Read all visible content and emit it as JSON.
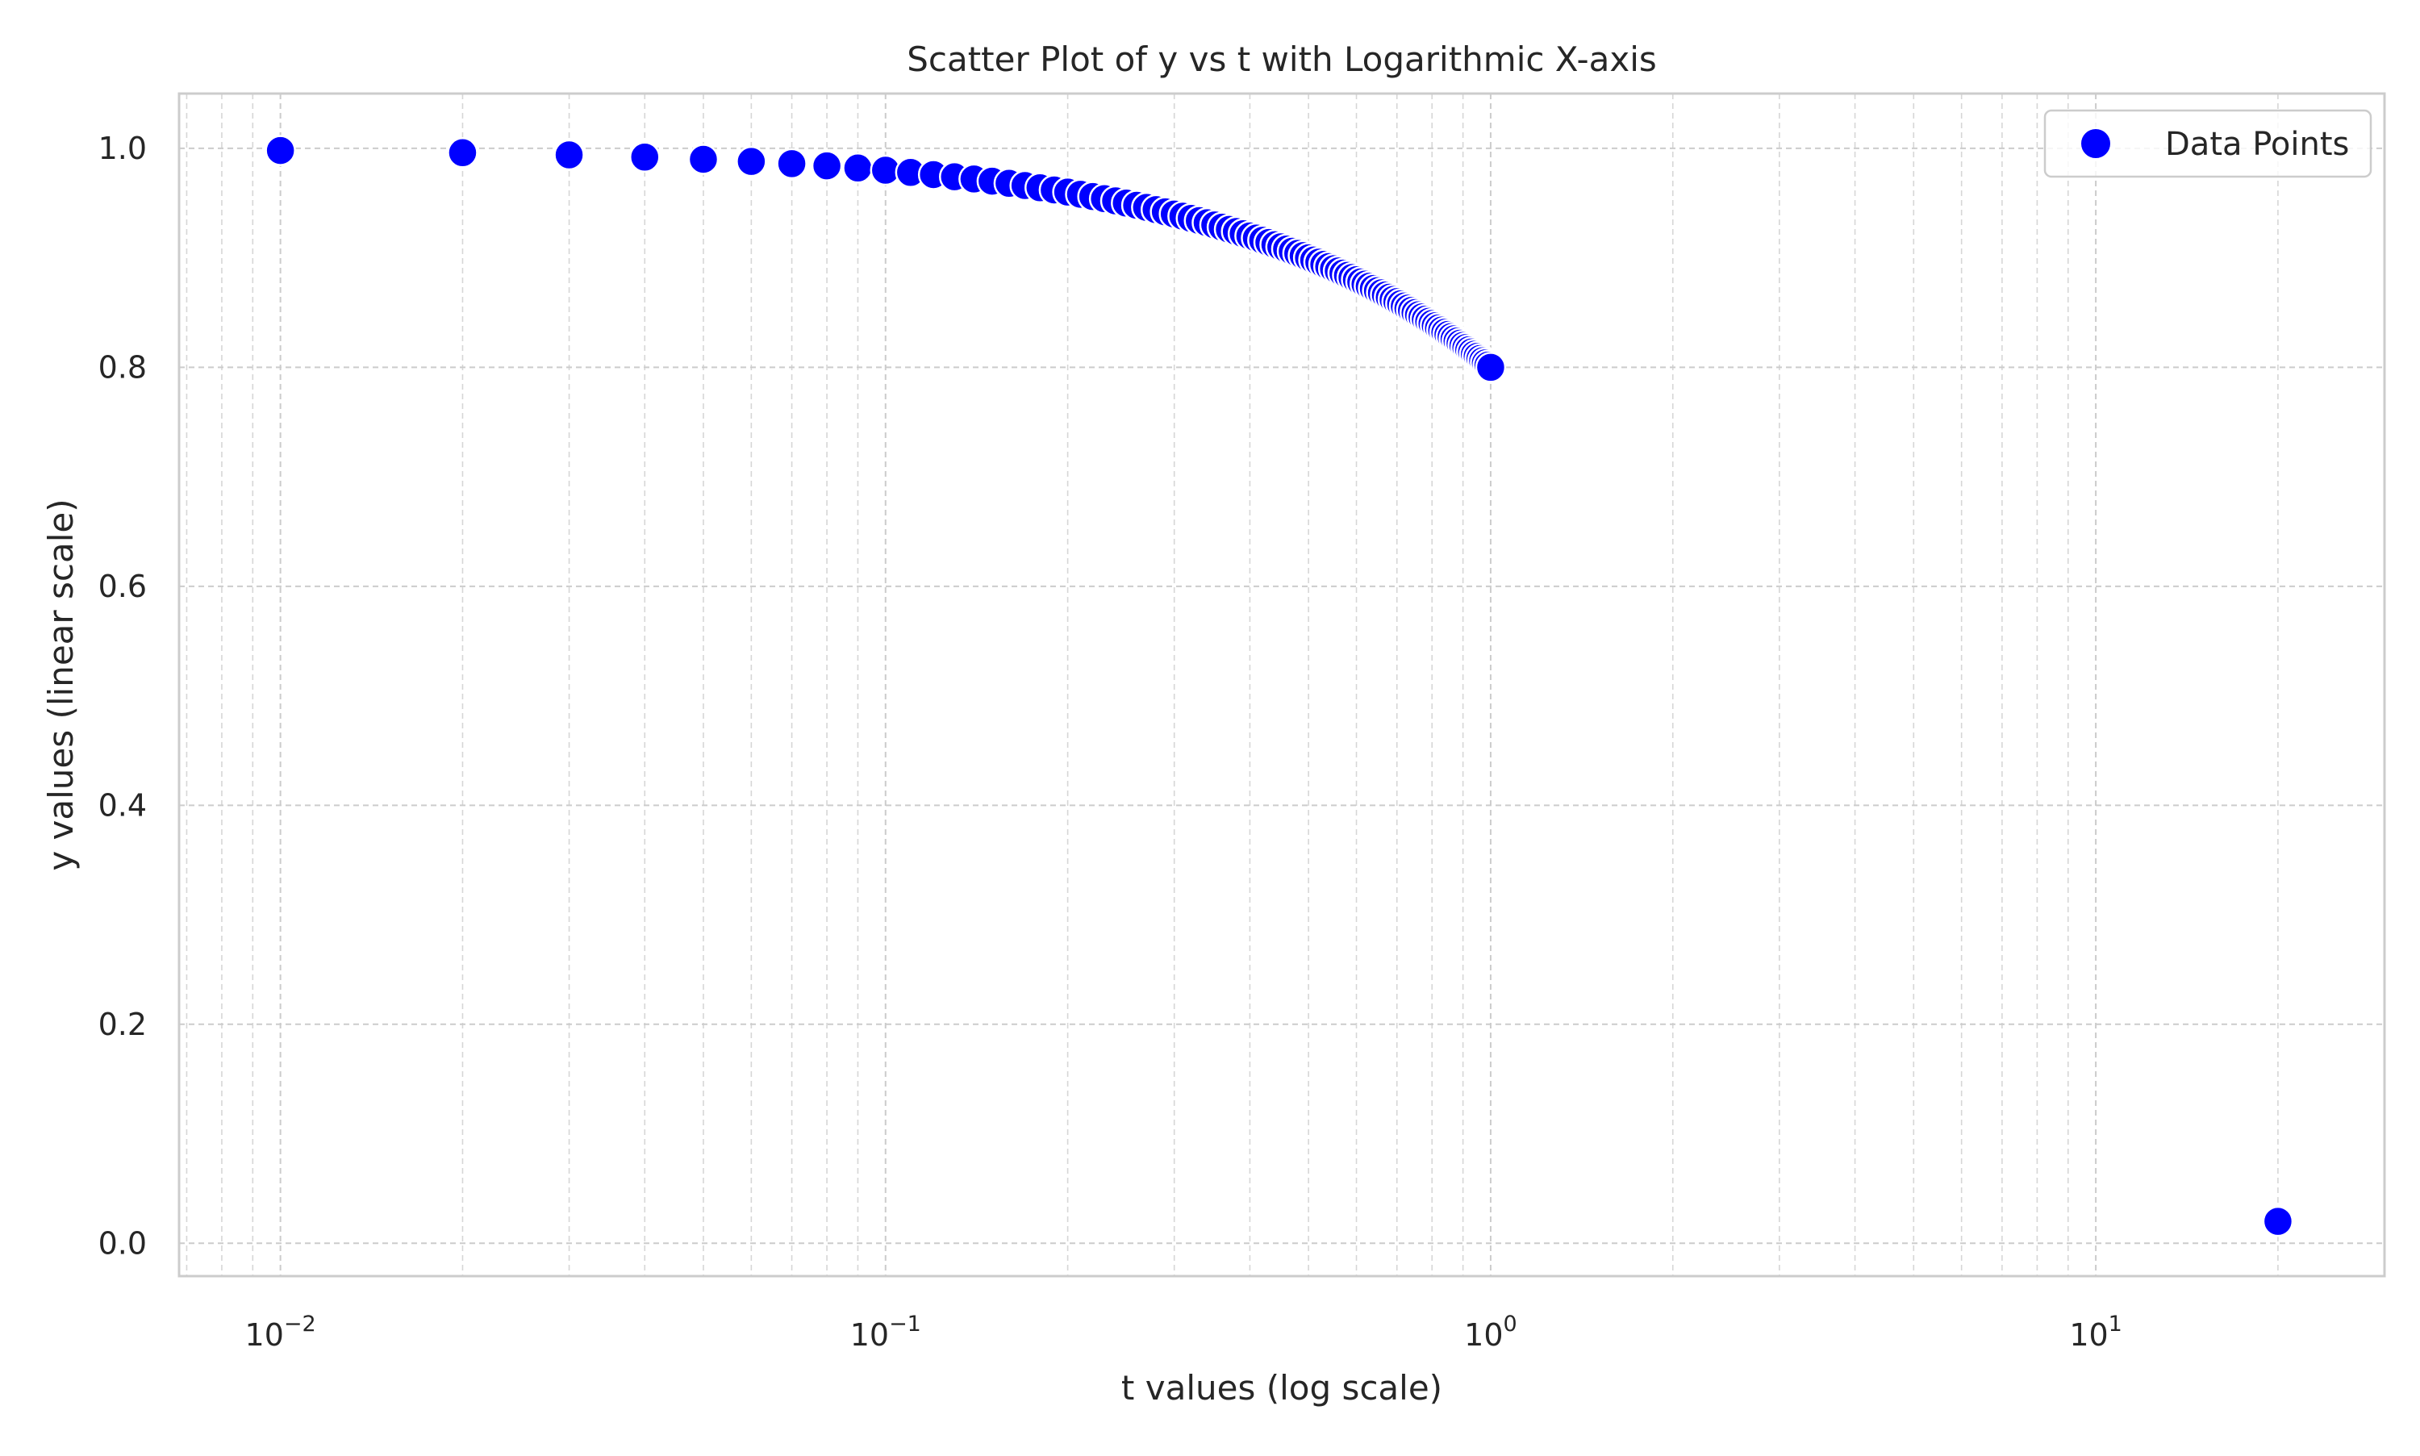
{
  "chart_data": {
    "type": "scatter",
    "title": "Scatter Plot of y vs t with Logarithmic X-axis",
    "xlabel": "t values (log scale)",
    "ylabel": "y values (linear scale)",
    "xscale": "log",
    "xlim": [
      0.0068,
      30
    ],
    "ylim": [
      -0.03,
      1.05
    ],
    "x_ticks": [
      {
        "base": "10",
        "exp": "−2",
        "value": 0.01
      },
      {
        "base": "10",
        "exp": "−1",
        "value": 0.1
      },
      {
        "base": "10",
        "exp": "0",
        "value": 1
      },
      {
        "base": "10",
        "exp": "1",
        "value": 10
      }
    ],
    "y_ticks": [
      {
        "label": "0.0",
        "value": 0.0
      },
      {
        "label": "0.2",
        "value": 0.2
      },
      {
        "label": "0.4",
        "value": 0.4
      },
      {
        "label": "0.6",
        "value": 0.6
      },
      {
        "label": "0.8",
        "value": 0.8
      },
      {
        "label": "1.0",
        "value": 1.0
      }
    ],
    "grid": true,
    "legend": {
      "position": "top-right",
      "entries": [
        "Data Points"
      ]
    },
    "series": [
      {
        "name": "Data Points",
        "color": "#0000ff",
        "marker": "circle",
        "points": [
          {
            "x": 0.01,
            "y": 0.998
          },
          {
            "x": 0.02,
            "y": 0.996
          },
          {
            "x": 0.03,
            "y": 0.994
          },
          {
            "x": 0.04,
            "y": 0.992
          },
          {
            "x": 0.05,
            "y": 0.99
          },
          {
            "x": 0.06,
            "y": 0.988
          },
          {
            "x": 0.07,
            "y": 0.986
          },
          {
            "x": 0.08,
            "y": 0.984
          },
          {
            "x": 0.09,
            "y": 0.982
          },
          {
            "x": 0.1,
            "y": 0.98
          },
          {
            "x": 0.11,
            "y": 0.978
          },
          {
            "x": 0.12,
            "y": 0.976
          },
          {
            "x": 0.13,
            "y": 0.974
          },
          {
            "x": 0.14,
            "y": 0.972
          },
          {
            "x": 0.15,
            "y": 0.97
          },
          {
            "x": 0.16,
            "y": 0.968
          },
          {
            "x": 0.17,
            "y": 0.966
          },
          {
            "x": 0.18,
            "y": 0.964
          },
          {
            "x": 0.19,
            "y": 0.962
          },
          {
            "x": 0.2,
            "y": 0.96
          },
          {
            "x": 0.21,
            "y": 0.958
          },
          {
            "x": 0.22,
            "y": 0.956
          },
          {
            "x": 0.23,
            "y": 0.954
          },
          {
            "x": 0.24,
            "y": 0.952
          },
          {
            "x": 0.25,
            "y": 0.95
          },
          {
            "x": 0.26,
            "y": 0.948
          },
          {
            "x": 0.27,
            "y": 0.946
          },
          {
            "x": 0.28,
            "y": 0.944
          },
          {
            "x": 0.29,
            "y": 0.942
          },
          {
            "x": 0.3,
            "y": 0.94
          },
          {
            "x": 0.31,
            "y": 0.938
          },
          {
            "x": 0.32,
            "y": 0.936
          },
          {
            "x": 0.33,
            "y": 0.934
          },
          {
            "x": 0.34,
            "y": 0.932
          },
          {
            "x": 0.35,
            "y": 0.93
          },
          {
            "x": 0.36,
            "y": 0.928
          },
          {
            "x": 0.37,
            "y": 0.926
          },
          {
            "x": 0.38,
            "y": 0.924
          },
          {
            "x": 0.39,
            "y": 0.922
          },
          {
            "x": 0.4,
            "y": 0.92
          },
          {
            "x": 0.41,
            "y": 0.918
          },
          {
            "x": 0.42,
            "y": 0.916
          },
          {
            "x": 0.43,
            "y": 0.914
          },
          {
            "x": 0.44,
            "y": 0.912
          },
          {
            "x": 0.45,
            "y": 0.91
          },
          {
            "x": 0.46,
            "y": 0.908
          },
          {
            "x": 0.47,
            "y": 0.906
          },
          {
            "x": 0.48,
            "y": 0.904
          },
          {
            "x": 0.49,
            "y": 0.902
          },
          {
            "x": 0.5,
            "y": 0.9
          },
          {
            "x": 0.51,
            "y": 0.898
          },
          {
            "x": 0.52,
            "y": 0.896
          },
          {
            "x": 0.53,
            "y": 0.894
          },
          {
            "x": 0.54,
            "y": 0.892
          },
          {
            "x": 0.55,
            "y": 0.89
          },
          {
            "x": 0.56,
            "y": 0.888
          },
          {
            "x": 0.57,
            "y": 0.886
          },
          {
            "x": 0.58,
            "y": 0.884
          },
          {
            "x": 0.59,
            "y": 0.882
          },
          {
            "x": 0.6,
            "y": 0.88
          },
          {
            "x": 0.61,
            "y": 0.878
          },
          {
            "x": 0.62,
            "y": 0.876
          },
          {
            "x": 0.63,
            "y": 0.874
          },
          {
            "x": 0.64,
            "y": 0.872
          },
          {
            "x": 0.65,
            "y": 0.87
          },
          {
            "x": 0.66,
            "y": 0.868
          },
          {
            "x": 0.67,
            "y": 0.866
          },
          {
            "x": 0.68,
            "y": 0.864
          },
          {
            "x": 0.69,
            "y": 0.862
          },
          {
            "x": 0.7,
            "y": 0.86
          },
          {
            "x": 0.71,
            "y": 0.858
          },
          {
            "x": 0.72,
            "y": 0.856
          },
          {
            "x": 0.73,
            "y": 0.854
          },
          {
            "x": 0.74,
            "y": 0.852
          },
          {
            "x": 0.75,
            "y": 0.85
          },
          {
            "x": 0.76,
            "y": 0.848
          },
          {
            "x": 0.77,
            "y": 0.846
          },
          {
            "x": 0.78,
            "y": 0.844
          },
          {
            "x": 0.79,
            "y": 0.842
          },
          {
            "x": 0.8,
            "y": 0.84
          },
          {
            "x": 0.81,
            "y": 0.838
          },
          {
            "x": 0.82,
            "y": 0.836
          },
          {
            "x": 0.83,
            "y": 0.834
          },
          {
            "x": 0.84,
            "y": 0.832
          },
          {
            "x": 0.85,
            "y": 0.83
          },
          {
            "x": 0.86,
            "y": 0.828
          },
          {
            "x": 0.87,
            "y": 0.826
          },
          {
            "x": 0.88,
            "y": 0.824
          },
          {
            "x": 0.89,
            "y": 0.822
          },
          {
            "x": 0.9,
            "y": 0.82
          },
          {
            "x": 0.91,
            "y": 0.818
          },
          {
            "x": 0.92,
            "y": 0.816
          },
          {
            "x": 0.93,
            "y": 0.814
          },
          {
            "x": 0.94,
            "y": 0.812
          },
          {
            "x": 0.95,
            "y": 0.81
          },
          {
            "x": 0.96,
            "y": 0.808
          },
          {
            "x": 0.97,
            "y": 0.806
          },
          {
            "x": 0.98,
            "y": 0.804
          },
          {
            "x": 0.99,
            "y": 0.802
          },
          {
            "x": 1.0,
            "y": 0.8
          },
          {
            "x": 20.0,
            "y": 0.02
          }
        ]
      }
    ]
  }
}
